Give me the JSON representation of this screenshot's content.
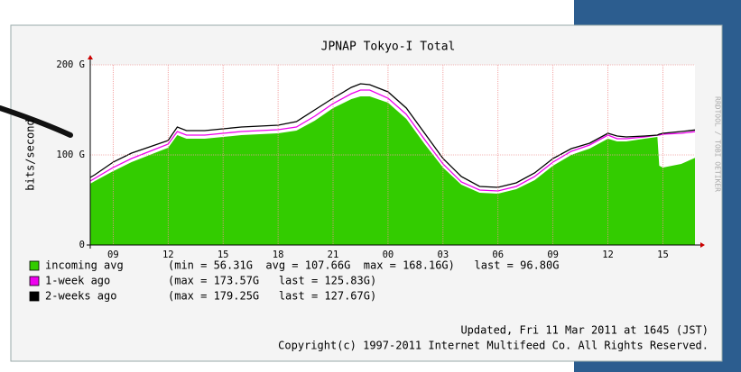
{
  "chart_data": {
    "type": "line",
    "title": "JPNAP Tokyo-I Total",
    "y_label": "bits/second",
    "side_text": "RRDTOOL / TOBI OETIKER",
    "x": [
      7.75,
      8,
      9,
      10,
      11,
      12,
      12.5,
      13,
      14,
      15,
      16,
      17,
      18,
      19,
      20,
      21,
      22,
      22.5,
      23,
      24,
      25,
      26,
      27,
      28,
      29,
      30,
      31,
      32,
      33,
      34,
      35,
      36,
      36.5,
      37,
      38,
      38.7,
      38.8,
      39,
      40,
      40.75
    ],
    "xlim": [
      7.75,
      40.75
    ],
    "xticks": [
      {
        "value": 9,
        "label": "09"
      },
      12,
      15,
      18,
      21,
      {
        "value": 24,
        "label": "00"
      },
      {
        "value": 27,
        "label": "03"
      },
      {
        "value": 30,
        "label": "06"
      },
      {
        "value": 33,
        "label": "09"
      },
      {
        "value": 36,
        "label": "12"
      },
      {
        "value": 39,
        "label": "15"
      }
    ],
    "ylim": [
      0,
      200
    ],
    "yticks": [
      0,
      {
        "value": 100,
        "label": "100 G"
      },
      {
        "value": 200,
        "label": "200 G"
      }
    ],
    "grid": true,
    "series": [
      {
        "name": "incoming avg",
        "style": "area",
        "color": "#33cc00",
        "stats": "(min = 56.31G  avg = 107.66G  max = 168.16G)   last = 96.80G",
        "values": [
          68,
          71,
          82,
          92,
          100,
          108,
          122,
          118,
          118,
          120,
          122,
          123,
          124,
          127,
          138,
          152,
          162,
          165,
          165,
          158,
          140,
          112,
          86,
          67,
          58,
          57,
          62,
          72,
          88,
          100,
          107,
          118,
          115,
          115,
          118,
          120,
          88,
          86,
          90,
          96.8
        ]
      },
      {
        "name": "1-week ago",
        "style": "line",
        "color": "#ee00ee",
        "stats": "(max = 173.57G   last = 125.83G)",
        "values": [
          71,
          74,
          86,
          96,
          104,
          112,
          126,
          122,
          122,
          124,
          126,
          127,
          128,
          131,
          143,
          157,
          168,
          172,
          172,
          163,
          145,
          117,
          90,
          70,
          61,
          60,
          65,
          76,
          92,
          104,
          111,
          122,
          118,
          118,
          120,
          122,
          122,
          123,
          124,
          125.83
        ]
      },
      {
        "name": "2-weeks ago",
        "style": "line",
        "color": "#000000",
        "stats": "(max = 179.25G   last = 127.67G)",
        "values": [
          75,
          78,
          92,
          102,
          109,
          116,
          131,
          127,
          127,
          129,
          131,
          132,
          133,
          137,
          150,
          163,
          175,
          179,
          178,
          170,
          152,
          124,
          96,
          76,
          65,
          64,
          69,
          80,
          96,
          107,
          113,
          124,
          121,
          120,
          121,
          122,
          123,
          124,
          126,
          127.67
        ]
      }
    ],
    "footer": [
      "Updated, Fri 11 Mar 2011 at 1645 (JST)",
      "Copyright(c) 1997-2011 Internet Multifeed Co. All Rights Reserved."
    ]
  }
}
